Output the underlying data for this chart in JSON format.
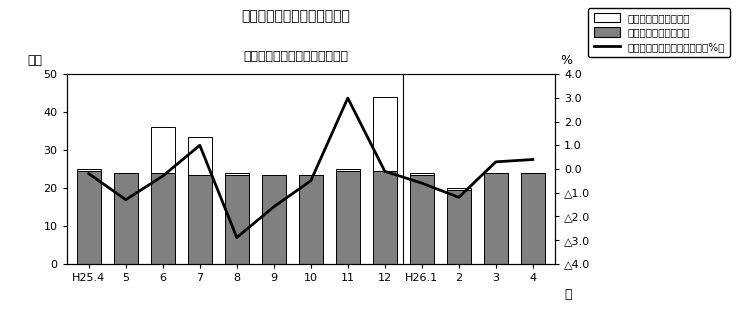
{
  "title_line1": "第１図　現金給与総額の推移",
  "title_line2": "（規模５人以上　調査産業計）",
  "xlabel": "月",
  "ylabel_left": "万円",
  "ylabel_right": "%",
  "categories": [
    "H25.4",
    "5",
    "6",
    "7",
    "8",
    "9",
    "10",
    "11",
    "12",
    "H26.1",
    "2",
    "3",
    "4"
  ],
  "special_pay": [
    0.5,
    0.0,
    12.0,
    10.0,
    0.5,
    0.0,
    0.0,
    0.5,
    19.5,
    0.5,
    0.5,
    0.0,
    0.0
  ],
  "regular_pay": [
    24.5,
    24.0,
    24.0,
    23.5,
    23.5,
    23.5,
    23.5,
    24.5,
    24.5,
    23.5,
    19.5,
    24.0,
    24.0
  ],
  "yoy_change": [
    -0.2,
    -1.3,
    -0.3,
    1.0,
    -2.9,
    -1.6,
    -0.5,
    3.0,
    -0.1,
    -0.6,
    -1.2,
    0.3,
    0.4
  ],
  "ylim_left": [
    0,
    50
  ],
  "ylim_right": [
    -4.0,
    4.0
  ],
  "bar_color_special": "#ffffff",
  "bar_color_regular": "#808080",
  "bar_edgecolor": "#000000",
  "line_color": "#000000",
  "background_color": "#ffffff",
  "legend_special": "特別に支払われた給与",
  "legend_regular": "きまって支給する給与",
  "legend_line": "現金給与総額対前年同月比（%）"
}
